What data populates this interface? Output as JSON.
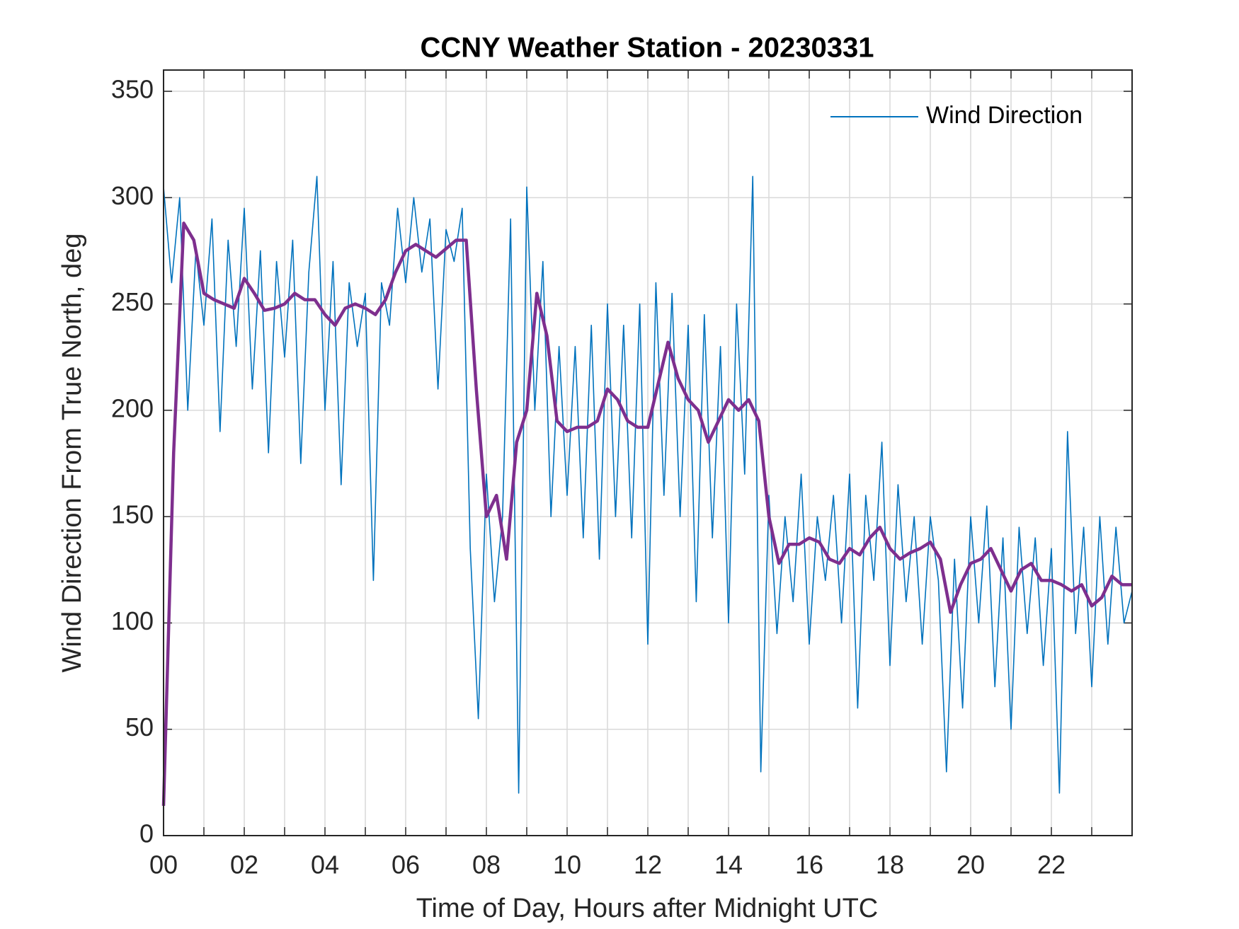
{
  "chart_data": {
    "type": "line",
    "title": "CCNY Weather Station - 20230331",
    "xlabel": "Time of Day, Hours after Midnight UTC",
    "ylabel": "Wind Direction From True North, deg",
    "xlim": [
      0,
      24
    ],
    "ylim": [
      0,
      360
    ],
    "xticks": [
      {
        "value": 0,
        "label": "00"
      },
      {
        "value": 2,
        "label": "02"
      },
      {
        "value": 4,
        "label": "04"
      },
      {
        "value": 6,
        "label": "06"
      },
      {
        "value": 8,
        "label": "08"
      },
      {
        "value": 10,
        "label": "10"
      },
      {
        "value": 12,
        "label": "12"
      },
      {
        "value": 14,
        "label": "14"
      },
      {
        "value": 16,
        "label": "16"
      },
      {
        "value": 18,
        "label": "18"
      },
      {
        "value": 20,
        "label": "20"
      },
      {
        "value": 22,
        "label": "22"
      }
    ],
    "xminor_ticks": [
      1,
      3,
      5,
      7,
      9,
      11,
      13,
      15,
      17,
      19,
      21,
      23
    ],
    "yticks": [
      0,
      50,
      100,
      150,
      200,
      250,
      300,
      350
    ],
    "grid": true,
    "legend": "upper right",
    "series": [
      {
        "name": "Wind Direction",
        "color": "#0072bd",
        "x": [
          0,
          0.2,
          0.4,
          0.6,
          0.8,
          1,
          1.2,
          1.4,
          1.6,
          1.8,
          2,
          2.2,
          2.4,
          2.6,
          2.8,
          3,
          3.2,
          3.4,
          3.6,
          3.8,
          4,
          4.2,
          4.4,
          4.6,
          4.8,
          5,
          5.2,
          5.4,
          5.6,
          5.8,
          6,
          6.2,
          6.4,
          6.6,
          6.8,
          7,
          7.2,
          7.4,
          7.6,
          7.8,
          8,
          8.2,
          8.4,
          8.6,
          8.8,
          9,
          9.2,
          9.4,
          9.6,
          9.8,
          10,
          10.2,
          10.4,
          10.6,
          10.8,
          11,
          11.2,
          11.4,
          11.6,
          11.8,
          12,
          12.2,
          12.4,
          12.6,
          12.8,
          13,
          13.2,
          13.4,
          13.6,
          13.8,
          14,
          14.2,
          14.4,
          14.6,
          14.8,
          15,
          15.2,
          15.4,
          15.6,
          15.8,
          16,
          16.2,
          16.4,
          16.6,
          16.8,
          17,
          17.2,
          17.4,
          17.6,
          17.8,
          18,
          18.2,
          18.4,
          18.6,
          18.8,
          19,
          19.2,
          19.4,
          19.6,
          19.8,
          20,
          20.2,
          20.4,
          20.6,
          20.8,
          21,
          21.2,
          21.4,
          21.6,
          21.8,
          22,
          22.2,
          22.4,
          22.6,
          22.8,
          23,
          23.2,
          23.4,
          23.6,
          23.8,
          24
        ],
        "values": [
          305,
          260,
          300,
          200,
          275,
          240,
          290,
          190,
          280,
          230,
          295,
          210,
          275,
          180,
          270,
          225,
          280,
          175,
          265,
          310,
          200,
          270,
          165,
          260,
          230,
          255,
          120,
          260,
          240,
          295,
          260,
          300,
          265,
          290,
          210,
          285,
          270,
          295,
          135,
          55,
          170,
          110,
          150,
          290,
          20,
          305,
          200,
          270,
          150,
          230,
          160,
          230,
          140,
          240,
          130,
          250,
          150,
          240,
          140,
          250,
          90,
          260,
          160,
          255,
          150,
          240,
          110,
          245,
          140,
          230,
          100,
          250,
          170,
          310,
          30,
          160,
          95,
          150,
          110,
          170,
          90,
          150,
          120,
          160,
          100,
          170,
          60,
          160,
          120,
          185,
          80,
          165,
          110,
          150,
          90,
          150,
          120,
          30,
          130,
          60,
          150,
          100,
          155,
          70,
          140,
          50,
          145,
          95,
          140,
          80,
          135,
          20,
          190,
          95,
          145,
          70,
          150,
          90,
          145,
          100,
          115
        ]
      },
      {
        "color": "#7e2f8e",
        "x": [
          0,
          0.25,
          0.5,
          0.75,
          1,
          1.25,
          1.5,
          1.75,
          2,
          2.25,
          2.5,
          2.75,
          3,
          3.25,
          3.5,
          3.75,
          4,
          4.25,
          4.5,
          4.75,
          5,
          5.25,
          5.5,
          5.75,
          6,
          6.25,
          6.5,
          6.75,
          7,
          7.25,
          7.5,
          7.75,
          8,
          8.25,
          8.5,
          8.75,
          9,
          9.25,
          9.5,
          9.75,
          10,
          10.25,
          10.5,
          10.75,
          11,
          11.25,
          11.5,
          11.75,
          12,
          12.25,
          12.5,
          12.75,
          13,
          13.25,
          13.5,
          13.75,
          14,
          14.25,
          14.5,
          14.75,
          15,
          15.25,
          15.5,
          15.75,
          16,
          16.25,
          16.5,
          16.75,
          17,
          17.25,
          17.5,
          17.75,
          18,
          18.25,
          18.5,
          18.75,
          19,
          19.25,
          19.5,
          19.75,
          20,
          20.25,
          20.5,
          20.75,
          21,
          21.25,
          21.5,
          21.75,
          22,
          22.25,
          22.5,
          22.75,
          23,
          23.25,
          23.5,
          23.75,
          24
        ],
        "values": [
          14,
          180,
          288,
          280,
          255,
          252,
          250,
          248,
          262,
          255,
          247,
          248,
          250,
          255,
          252,
          252,
          245,
          240,
          248,
          250,
          248,
          245,
          252,
          265,
          275,
          278,
          275,
          272,
          276,
          280,
          280,
          210,
          150,
          160,
          130,
          185,
          200,
          255,
          235,
          195,
          190,
          192,
          192,
          195,
          210,
          205,
          195,
          192,
          192,
          212,
          232,
          215,
          205,
          200,
          185,
          195,
          205,
          200,
          205,
          195,
          150,
          128,
          137,
          137,
          140,
          138,
          130,
          128,
          135,
          132,
          140,
          145,
          135,
          130,
          133,
          135,
          138,
          130,
          105,
          118,
          128,
          130,
          135,
          125,
          115,
          125,
          128,
          120,
          120,
          118,
          115,
          118,
          108,
          112,
          122,
          118,
          118
        ]
      }
    ]
  }
}
